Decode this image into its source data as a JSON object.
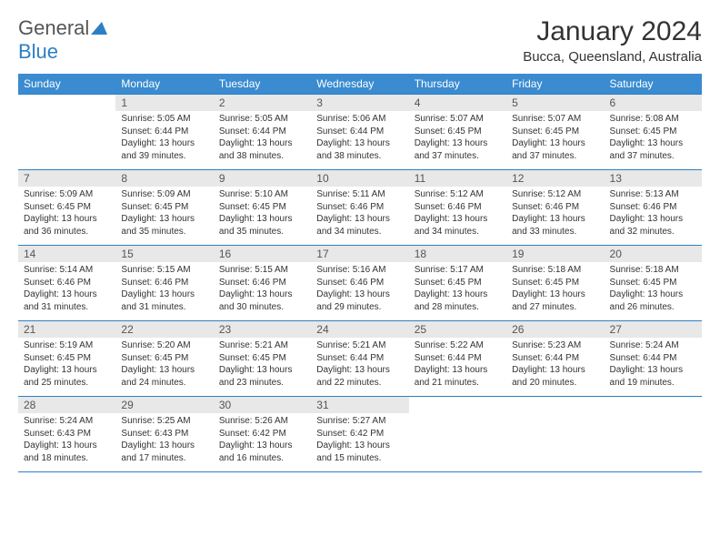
{
  "logo": {
    "main": "General",
    "accent": "Blue"
  },
  "title": "January 2024",
  "location": "Bucca, Queensland, Australia",
  "day_headers": [
    "Sunday",
    "Monday",
    "Tuesday",
    "Wednesday",
    "Thursday",
    "Friday",
    "Saturday"
  ],
  "colors": {
    "header_bg": "#3a8bd0",
    "header_text": "#ffffff",
    "date_bg": "#e8e8e8",
    "border": "#2d7fc4",
    "logo_accent": "#2d7fc4"
  },
  "typography": {
    "title_fontsize": 30,
    "location_fontsize": 15,
    "dayheader_fontsize": 12,
    "date_fontsize": 12,
    "cell_fontsize": 10
  },
  "weeks": [
    [
      null,
      {
        "n": "1",
        "sr": "Sunrise: 5:05 AM",
        "ss": "Sunset: 6:44 PM",
        "d1": "Daylight: 13 hours",
        "d2": "and 39 minutes."
      },
      {
        "n": "2",
        "sr": "Sunrise: 5:05 AM",
        "ss": "Sunset: 6:44 PM",
        "d1": "Daylight: 13 hours",
        "d2": "and 38 minutes."
      },
      {
        "n": "3",
        "sr": "Sunrise: 5:06 AM",
        "ss": "Sunset: 6:44 PM",
        "d1": "Daylight: 13 hours",
        "d2": "and 38 minutes."
      },
      {
        "n": "4",
        "sr": "Sunrise: 5:07 AM",
        "ss": "Sunset: 6:45 PM",
        "d1": "Daylight: 13 hours",
        "d2": "and 37 minutes."
      },
      {
        "n": "5",
        "sr": "Sunrise: 5:07 AM",
        "ss": "Sunset: 6:45 PM",
        "d1": "Daylight: 13 hours",
        "d2": "and 37 minutes."
      },
      {
        "n": "6",
        "sr": "Sunrise: 5:08 AM",
        "ss": "Sunset: 6:45 PM",
        "d1": "Daylight: 13 hours",
        "d2": "and 37 minutes."
      }
    ],
    [
      {
        "n": "7",
        "sr": "Sunrise: 5:09 AM",
        "ss": "Sunset: 6:45 PM",
        "d1": "Daylight: 13 hours",
        "d2": "and 36 minutes."
      },
      {
        "n": "8",
        "sr": "Sunrise: 5:09 AM",
        "ss": "Sunset: 6:45 PM",
        "d1": "Daylight: 13 hours",
        "d2": "and 35 minutes."
      },
      {
        "n": "9",
        "sr": "Sunrise: 5:10 AM",
        "ss": "Sunset: 6:45 PM",
        "d1": "Daylight: 13 hours",
        "d2": "and 35 minutes."
      },
      {
        "n": "10",
        "sr": "Sunrise: 5:11 AM",
        "ss": "Sunset: 6:46 PM",
        "d1": "Daylight: 13 hours",
        "d2": "and 34 minutes."
      },
      {
        "n": "11",
        "sr": "Sunrise: 5:12 AM",
        "ss": "Sunset: 6:46 PM",
        "d1": "Daylight: 13 hours",
        "d2": "and 34 minutes."
      },
      {
        "n": "12",
        "sr": "Sunrise: 5:12 AM",
        "ss": "Sunset: 6:46 PM",
        "d1": "Daylight: 13 hours",
        "d2": "and 33 minutes."
      },
      {
        "n": "13",
        "sr": "Sunrise: 5:13 AM",
        "ss": "Sunset: 6:46 PM",
        "d1": "Daylight: 13 hours",
        "d2": "and 32 minutes."
      }
    ],
    [
      {
        "n": "14",
        "sr": "Sunrise: 5:14 AM",
        "ss": "Sunset: 6:46 PM",
        "d1": "Daylight: 13 hours",
        "d2": "and 31 minutes."
      },
      {
        "n": "15",
        "sr": "Sunrise: 5:15 AM",
        "ss": "Sunset: 6:46 PM",
        "d1": "Daylight: 13 hours",
        "d2": "and 31 minutes."
      },
      {
        "n": "16",
        "sr": "Sunrise: 5:15 AM",
        "ss": "Sunset: 6:46 PM",
        "d1": "Daylight: 13 hours",
        "d2": "and 30 minutes."
      },
      {
        "n": "17",
        "sr": "Sunrise: 5:16 AM",
        "ss": "Sunset: 6:46 PM",
        "d1": "Daylight: 13 hours",
        "d2": "and 29 minutes."
      },
      {
        "n": "18",
        "sr": "Sunrise: 5:17 AM",
        "ss": "Sunset: 6:45 PM",
        "d1": "Daylight: 13 hours",
        "d2": "and 28 minutes."
      },
      {
        "n": "19",
        "sr": "Sunrise: 5:18 AM",
        "ss": "Sunset: 6:45 PM",
        "d1": "Daylight: 13 hours",
        "d2": "and 27 minutes."
      },
      {
        "n": "20",
        "sr": "Sunrise: 5:18 AM",
        "ss": "Sunset: 6:45 PM",
        "d1": "Daylight: 13 hours",
        "d2": "and 26 minutes."
      }
    ],
    [
      {
        "n": "21",
        "sr": "Sunrise: 5:19 AM",
        "ss": "Sunset: 6:45 PM",
        "d1": "Daylight: 13 hours",
        "d2": "and 25 minutes."
      },
      {
        "n": "22",
        "sr": "Sunrise: 5:20 AM",
        "ss": "Sunset: 6:45 PM",
        "d1": "Daylight: 13 hours",
        "d2": "and 24 minutes."
      },
      {
        "n": "23",
        "sr": "Sunrise: 5:21 AM",
        "ss": "Sunset: 6:45 PM",
        "d1": "Daylight: 13 hours",
        "d2": "and 23 minutes."
      },
      {
        "n": "24",
        "sr": "Sunrise: 5:21 AM",
        "ss": "Sunset: 6:44 PM",
        "d1": "Daylight: 13 hours",
        "d2": "and 22 minutes."
      },
      {
        "n": "25",
        "sr": "Sunrise: 5:22 AM",
        "ss": "Sunset: 6:44 PM",
        "d1": "Daylight: 13 hours",
        "d2": "and 21 minutes."
      },
      {
        "n": "26",
        "sr": "Sunrise: 5:23 AM",
        "ss": "Sunset: 6:44 PM",
        "d1": "Daylight: 13 hours",
        "d2": "and 20 minutes."
      },
      {
        "n": "27",
        "sr": "Sunrise: 5:24 AM",
        "ss": "Sunset: 6:44 PM",
        "d1": "Daylight: 13 hours",
        "d2": "and 19 minutes."
      }
    ],
    [
      {
        "n": "28",
        "sr": "Sunrise: 5:24 AM",
        "ss": "Sunset: 6:43 PM",
        "d1": "Daylight: 13 hours",
        "d2": "and 18 minutes."
      },
      {
        "n": "29",
        "sr": "Sunrise: 5:25 AM",
        "ss": "Sunset: 6:43 PM",
        "d1": "Daylight: 13 hours",
        "d2": "and 17 minutes."
      },
      {
        "n": "30",
        "sr": "Sunrise: 5:26 AM",
        "ss": "Sunset: 6:42 PM",
        "d1": "Daylight: 13 hours",
        "d2": "and 16 minutes."
      },
      {
        "n": "31",
        "sr": "Sunrise: 5:27 AM",
        "ss": "Sunset: 6:42 PM",
        "d1": "Daylight: 13 hours",
        "d2": "and 15 minutes."
      },
      null,
      null,
      null
    ]
  ]
}
